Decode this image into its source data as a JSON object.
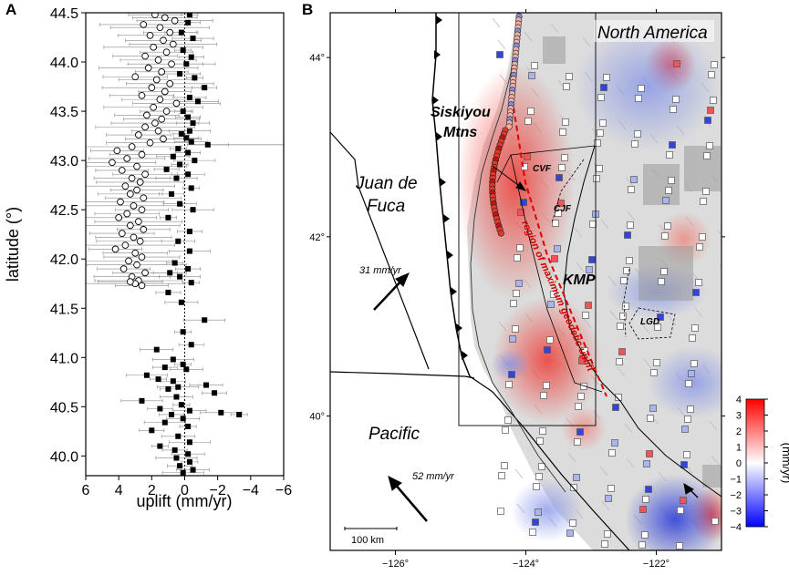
{
  "panel_a": {
    "letter": "A"
  },
  "panel_b": {
    "letter": "B"
  },
  "chart_data": [
    {
      "type": "scatter",
      "panel": "A",
      "xlabel": "uplift (mm/yr)",
      "ylabel": "latitude (°)",
      "xlim": [
        6,
        -6
      ],
      "ylim": [
        39.8,
        44.5
      ],
      "x_reversed": true,
      "xticks": [
        6,
        4,
        2,
        0,
        -2,
        -4,
        -6
      ],
      "xtick_labels": [
        "6",
        "4",
        "2",
        "0",
        "−2",
        "−4",
        "−6"
      ],
      "yticks": [
        40.0,
        40.5,
        41.0,
        41.5,
        42.0,
        42.5,
        43.0,
        43.5,
        44.0,
        44.5
      ],
      "ytick_labels": [
        "40.0",
        "40.5",
        "41.0",
        "41.5",
        "42.0",
        "42.5",
        "43.0",
        "43.5",
        "44.0",
        "44.5"
      ],
      "zero_line": "dotted",
      "series": [
        {
          "marker": "open-circle",
          "points": [
            [
              1.8,
              44.48
            ],
            [
              1.2,
              44.45
            ],
            [
              0.6,
              44.42
            ],
            [
              2.5,
              44.38
            ],
            [
              1.5,
              44.35
            ],
            [
              0.9,
              44.3
            ],
            [
              2.1,
              44.27
            ],
            [
              1.3,
              44.22
            ],
            [
              0.7,
              44.18
            ],
            [
              1.9,
              44.15
            ],
            [
              1.1,
              44.1
            ],
            [
              2.4,
              44.06
            ],
            [
              1.6,
              44.02
            ],
            [
              0.8,
              43.98
            ],
            [
              2.2,
              43.94
            ],
            [
              1.4,
              43.9
            ],
            [
              3.0,
              43.85
            ],
            [
              1.7,
              43.82
            ],
            [
              0.9,
              43.78
            ],
            [
              2.0,
              43.74
            ],
            [
              1.2,
              43.7
            ],
            [
              2.6,
              43.66
            ],
            [
              1.5,
              43.62
            ],
            [
              0.5,
              43.58
            ],
            [
              1.9,
              43.54
            ],
            [
              1.1,
              43.5
            ],
            [
              2.3,
              43.46
            ],
            [
              1.4,
              43.42
            ],
            [
              1.8,
              43.38
            ],
            [
              2.4,
              43.34
            ],
            [
              1.6,
              43.3
            ],
            [
              2.8,
              43.26
            ],
            [
              1.3,
              43.22
            ],
            [
              2.1,
              43.18
            ],
            [
              3.2,
              43.14
            ],
            [
              4.1,
              43.1
            ],
            [
              2.6,
              43.06
            ],
            [
              3.5,
              43.02
            ],
            [
              4.4,
              42.98
            ],
            [
              2.9,
              42.94
            ],
            [
              3.8,
              42.9
            ],
            [
              2.4,
              42.86
            ],
            [
              3.2,
              42.82
            ],
            [
              2.7,
              42.78
            ],
            [
              3.6,
              42.74
            ],
            [
              2.9,
              42.7
            ],
            [
              3.3,
              42.66
            ],
            [
              2.5,
              42.62
            ],
            [
              3.9,
              42.58
            ],
            [
              3.1,
              42.54
            ],
            [
              2.6,
              42.5
            ],
            [
              3.5,
              42.46
            ],
            [
              4.0,
              42.42
            ],
            [
              2.8,
              42.38
            ],
            [
              3.3,
              42.34
            ],
            [
              2.5,
              42.3
            ],
            [
              3.8,
              42.26
            ],
            [
              3.1,
              42.22
            ],
            [
              2.7,
              42.18
            ],
            [
              3.6,
              42.14
            ],
            [
              4.2,
              42.1
            ],
            [
              3.0,
              42.06
            ],
            [
              2.6,
              42.02
            ],
            [
              3.4,
              41.98
            ],
            [
              2.9,
              41.94
            ],
            [
              3.7,
              41.9
            ],
            [
              2.4,
              41.86
            ],
            [
              3.2,
              41.82
            ],
            [
              2.8,
              41.78
            ],
            [
              3.0,
              41.75
            ],
            [
              2.6,
              41.73
            ],
            [
              3.3,
              41.77
            ]
          ]
        },
        {
          "marker": "filled-square",
          "points": [
            [
              -0.3,
              44.48
            ],
            [
              -0.2,
              44.4
            ],
            [
              0.2,
              44.3
            ],
            [
              -0.5,
              44.24
            ],
            [
              0.1,
              44.12
            ],
            [
              -0.4,
              44.05
            ],
            [
              -0.1,
              43.98
            ],
            [
              0.3,
              43.88
            ],
            [
              -0.6,
              43.84
            ],
            [
              -1.2,
              43.74
            ],
            [
              -0.3,
              43.64
            ],
            [
              -0.8,
              43.6
            ],
            [
              0.1,
              43.5
            ],
            [
              -0.2,
              43.44
            ],
            [
              -0.5,
              43.38
            ],
            [
              -0.3,
              43.3
            ],
            [
              0.2,
              43.27
            ],
            [
              -0.1,
              43.23
            ],
            [
              -0.4,
              43.19
            ],
            [
              -1.4,
              43.16
            ],
            [
              0.4,
              43.12
            ],
            [
              -0.2,
              43.08
            ],
            [
              0.7,
              43.04
            ],
            [
              -0.6,
              43.0
            ],
            [
              0.3,
              42.96
            ],
            [
              1.1,
              42.91
            ],
            [
              -0.2,
              42.86
            ],
            [
              0.5,
              42.82
            ],
            [
              -0.4,
              42.72
            ],
            [
              0.8,
              42.66
            ],
            [
              0.3,
              42.56
            ],
            [
              -0.5,
              42.5
            ],
            [
              1.0,
              42.42
            ],
            [
              -0.3,
              42.28
            ],
            [
              0.4,
              42.18
            ],
            [
              -0.3,
              42.08
            ],
            [
              0.6,
              41.96
            ],
            [
              -0.2,
              41.9
            ],
            [
              0.9,
              41.86
            ],
            [
              0.3,
              41.82
            ],
            [
              -0.4,
              41.76
            ],
            [
              1.0,
              41.66
            ],
            [
              0.2,
              41.56
            ],
            [
              -1.2,
              41.38
            ],
            [
              0.1,
              41.26
            ],
            [
              -0.4,
              41.13
            ],
            [
              1.7,
              41.08
            ],
            [
              0.7,
              40.98
            ],
            [
              0.1,
              40.93
            ],
            [
              1.2,
              40.9
            ],
            [
              -0.1,
              40.88
            ],
            [
              2.3,
              40.82
            ],
            [
              1.6,
              40.78
            ],
            [
              0.7,
              40.76
            ],
            [
              -1.3,
              40.72
            ],
            [
              0.4,
              40.7
            ],
            [
              1.0,
              40.68
            ],
            [
              -1.8,
              40.64
            ],
            [
              0.5,
              40.6
            ],
            [
              2.6,
              40.56
            ],
            [
              0.2,
              40.52
            ],
            [
              1.5,
              40.48
            ],
            [
              -0.3,
              40.46
            ],
            [
              -2.2,
              40.44
            ],
            [
              -3.3,
              40.42
            ],
            [
              0.8,
              40.42
            ],
            [
              0.1,
              40.38
            ],
            [
              1.2,
              40.34
            ],
            [
              -0.2,
              40.3
            ],
            [
              2.0,
              40.26
            ],
            [
              0.4,
              40.2
            ],
            [
              -0.3,
              40.14
            ],
            [
              1.5,
              40.1
            ],
            [
              0.6,
              40.06
            ],
            [
              -0.2,
              40.02
            ],
            [
              0.5,
              39.98
            ],
            [
              -0.3,
              39.94
            ],
            [
              0.3,
              39.9
            ],
            [
              -0.5,
              39.86
            ],
            [
              0.1,
              39.83
            ]
          ]
        }
      ]
    },
    {
      "type": "heatmap",
      "panel": "B",
      "xlim": [
        -127,
        -121
      ],
      "ylim": [
        38.5,
        44.5
      ],
      "xticks": [
        -126,
        -124,
        -122
      ],
      "xtick_labels": [
        "−126°",
        "−124°",
        "−122°"
      ],
      "yticks": [
        44,
        42,
        40
      ],
      "ytick_labels": [
        "44°",
        "42°",
        "40°"
      ],
      "colorbar": {
        "label": "(mm/yr)",
        "range": [
          -4,
          4
        ],
        "ticks": [
          "4",
          "3",
          "2",
          "1",
          "0",
          "−1",
          "−2",
          "−3",
          "−4"
        ],
        "high_color": "#ff0000",
        "mid_color": "#ffffff",
        "low_color": "#0000ff"
      },
      "plate_labels": [
        "North America",
        "Juan de Fuca",
        "Pacific"
      ],
      "feature_labels": [
        "Siskiyou",
        "Mtns",
        "CVF",
        "CJF",
        "KMP",
        "LGD"
      ],
      "region_label": "region of maximum geodetic uplift",
      "rates": [
        {
          "label": "31 mm/yr",
          "lon": -126.2,
          "lat": 41.5
        },
        {
          "label": "52 mm/yr",
          "lon": -126.0,
          "lat": 39.1
        }
      ],
      "scalebar_label": "100 km",
      "colors": {
        "boundary": "#000000",
        "region_line": "#dd0000",
        "uplift": "#e8403a",
        "subsidence": "#2d3ed8"
      }
    }
  ]
}
